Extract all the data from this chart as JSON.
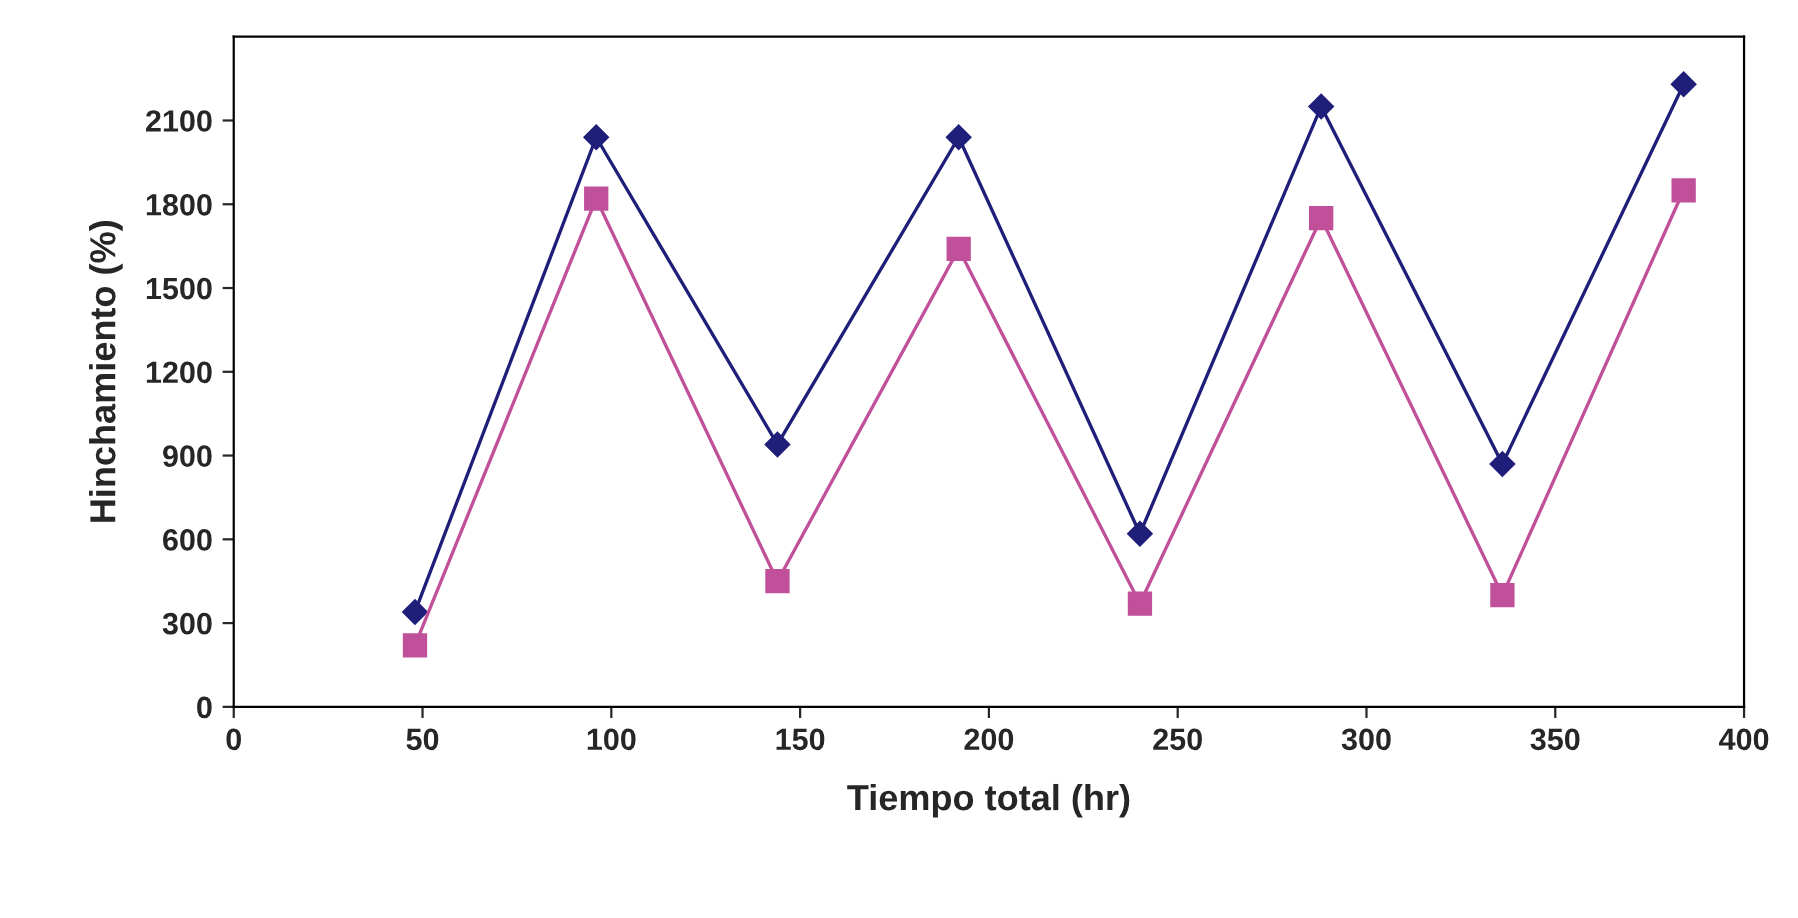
{
  "chart_data": {
    "type": "line",
    "xlabel": "Tiempo total (hr)",
    "ylabel": "Hinchamiento (%)",
    "x": [
      48,
      96,
      144,
      192,
      240,
      288,
      336,
      384
    ],
    "series": [
      {
        "color": "#1f1f7a",
        "marker": "diamond",
        "values": [
          340,
          2040,
          940,
          2040,
          620,
          2150,
          870,
          2230
        ]
      },
      {
        "color": "#c0509a",
        "marker": "square",
        "values": [
          220,
          1820,
          450,
          1640,
          370,
          1750,
          400,
          1850
        ]
      }
    ],
    "xlim": [
      0,
      400
    ],
    "xticks": [
      0,
      50,
      100,
      150,
      200,
      250,
      300,
      350,
      400
    ],
    "ylim": [
      0,
      2400
    ],
    "yticks": [
      0,
      300,
      600,
      900,
      1200,
      1500,
      1800,
      2100
    ],
    "grid": false,
    "legend": false,
    "line_style": "solid"
  }
}
